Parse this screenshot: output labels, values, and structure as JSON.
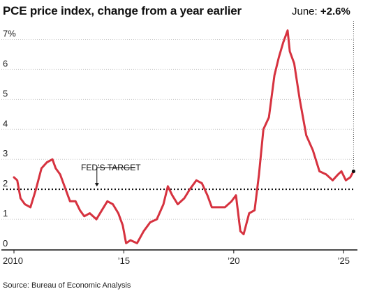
{
  "chart_data": {
    "type": "line",
    "title": "PCE price index, change from a year earlier",
    "callout": {
      "label": "June:",
      "value": "+2.6%"
    },
    "source": "Source: Bureau of Economic Analysis",
    "y_ticks": [
      "7%",
      "6",
      "5",
      "4",
      "3",
      "2",
      "1",
      "0"
    ],
    "y_tick_values": [
      7,
      6,
      5,
      4,
      3,
      2,
      1,
      0
    ],
    "x_ticks": [
      "2010",
      "’15",
      "’20",
      "’25"
    ],
    "x_tick_values": [
      2010,
      2015,
      2020,
      2025
    ],
    "xlim": [
      2010,
      2025.5
    ],
    "ylim": [
      0,
      7.5
    ],
    "target": {
      "label": "FED’S TARGET",
      "value": 2.0
    },
    "line_color": "#d6323f",
    "series": [
      {
        "x": [
          2010.0,
          2010.15,
          2010.3,
          2010.5,
          2010.75,
          2011.0,
          2011.25,
          2011.5,
          2011.75,
          2011.9,
          2012.1,
          2012.3,
          2012.55,
          2012.8,
          2013.0,
          2013.2,
          2013.45,
          2013.75,
          2014.0,
          2014.25,
          2014.5,
          2014.75,
          2014.95,
          2015.1,
          2015.3,
          2015.6,
          2015.9,
          2016.2,
          2016.5,
          2016.8,
          2017.0,
          2017.2,
          2017.45,
          2017.75,
          2018.0,
          2018.3,
          2018.55,
          2018.8,
          2019.0,
          2019.3,
          2019.6,
          2019.9,
          2020.1,
          2020.3,
          2020.45,
          2020.7,
          2020.95,
          2021.15,
          2021.35,
          2021.6,
          2021.85,
          2022.05,
          2022.25,
          2022.45,
          2022.55,
          2022.75,
          2023.0,
          2023.3,
          2023.6,
          2023.9,
          2024.2,
          2024.5,
          2024.75,
          2024.9,
          2025.1,
          2025.3,
          2025.45
        ],
        "values": [
          2.4,
          2.3,
          1.7,
          1.5,
          1.4,
          2.0,
          2.7,
          2.9,
          3.0,
          2.7,
          2.5,
          2.1,
          1.6,
          1.6,
          1.3,
          1.1,
          1.2,
          1.0,
          1.3,
          1.6,
          1.5,
          1.2,
          0.8,
          0.2,
          0.3,
          0.2,
          0.6,
          0.9,
          1.0,
          1.5,
          2.1,
          1.8,
          1.5,
          1.7,
          2.0,
          2.3,
          2.2,
          1.8,
          1.4,
          1.4,
          1.4,
          1.6,
          1.8,
          0.6,
          0.5,
          1.2,
          1.3,
          2.5,
          4.0,
          4.4,
          5.8,
          6.4,
          6.9,
          7.3,
          6.6,
          6.2,
          5.0,
          3.8,
          3.3,
          2.6,
          2.5,
          2.3,
          2.5,
          2.6,
          2.3,
          2.4,
          2.6
        ]
      }
    ]
  }
}
